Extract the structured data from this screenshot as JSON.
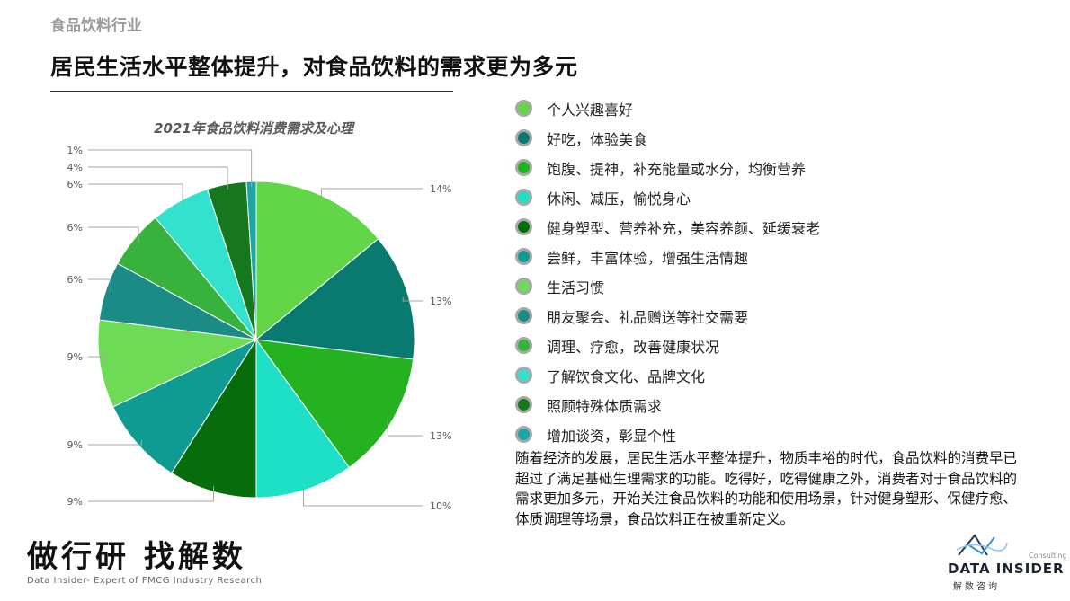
{
  "header": {
    "industry": "食品饮料行业",
    "title": "居民生活水平整体提升，对食品饮料的需求更为多元"
  },
  "chart_data": {
    "type": "pie",
    "title": "2021年食品饮料消费需求及心理",
    "categories": [
      "个人兴趣喜好",
      "好吃，体验美食",
      "饱腹、提神，补充能量或水分，均衡营养",
      "休闲、减压，愉悦身心",
      "健身塑型、营养补充，美容养颜、延缓衰老",
      "尝鲜，丰富体验，增强生活情趣",
      "生活习惯",
      "朋友聚会、礼品赠送等社交需要",
      "调理、疗愈，改善健康状况",
      "了解饮食文化、品牌文化",
      "照顾特殊体质需求",
      "增加谈资，彰显个性"
    ],
    "values": [
      14,
      13,
      13,
      10,
      9,
      9,
      9,
      6,
      6,
      6,
      4,
      1
    ],
    "data_labels": [
      "14%",
      "13%",
      "13%",
      "10%",
      "9%",
      "9%",
      "9%",
      "6%",
      "6%",
      "6%",
      "4%",
      "1%"
    ],
    "colors": [
      "#62d646",
      "#087a70",
      "#25b221",
      "#1ee0c6",
      "#076d0c",
      "#109b92",
      "#6ddb55",
      "#1a8b85",
      "#37b23d",
      "#33e2cc",
      "#16781d",
      "#1aa5a6"
    ],
    "legend_position": "right"
  },
  "description": "随着经济的发展，居民生活水平整体提升，物质丰裕的时代，食品饮料的消费早已超过了满足基础生理需求的功能。吃得好，吃得健康之外，消费者对于食品饮料的需求更加多元，开始关注食品饮料的功能和使用场景，针对健身塑形、保健疗愈、体质调理等场景，食品饮料正在被重新定义。",
  "footer": {
    "brand_cn": "做行研 找解数",
    "brand_en": "Data Insider- Expert of FMCG Industry Research",
    "logo_consulting": "Consulting",
    "logo_name": "DATA INSIDER",
    "logo_sub": "解数咨询",
    "logo_icon": "wave-triangle-icon"
  }
}
